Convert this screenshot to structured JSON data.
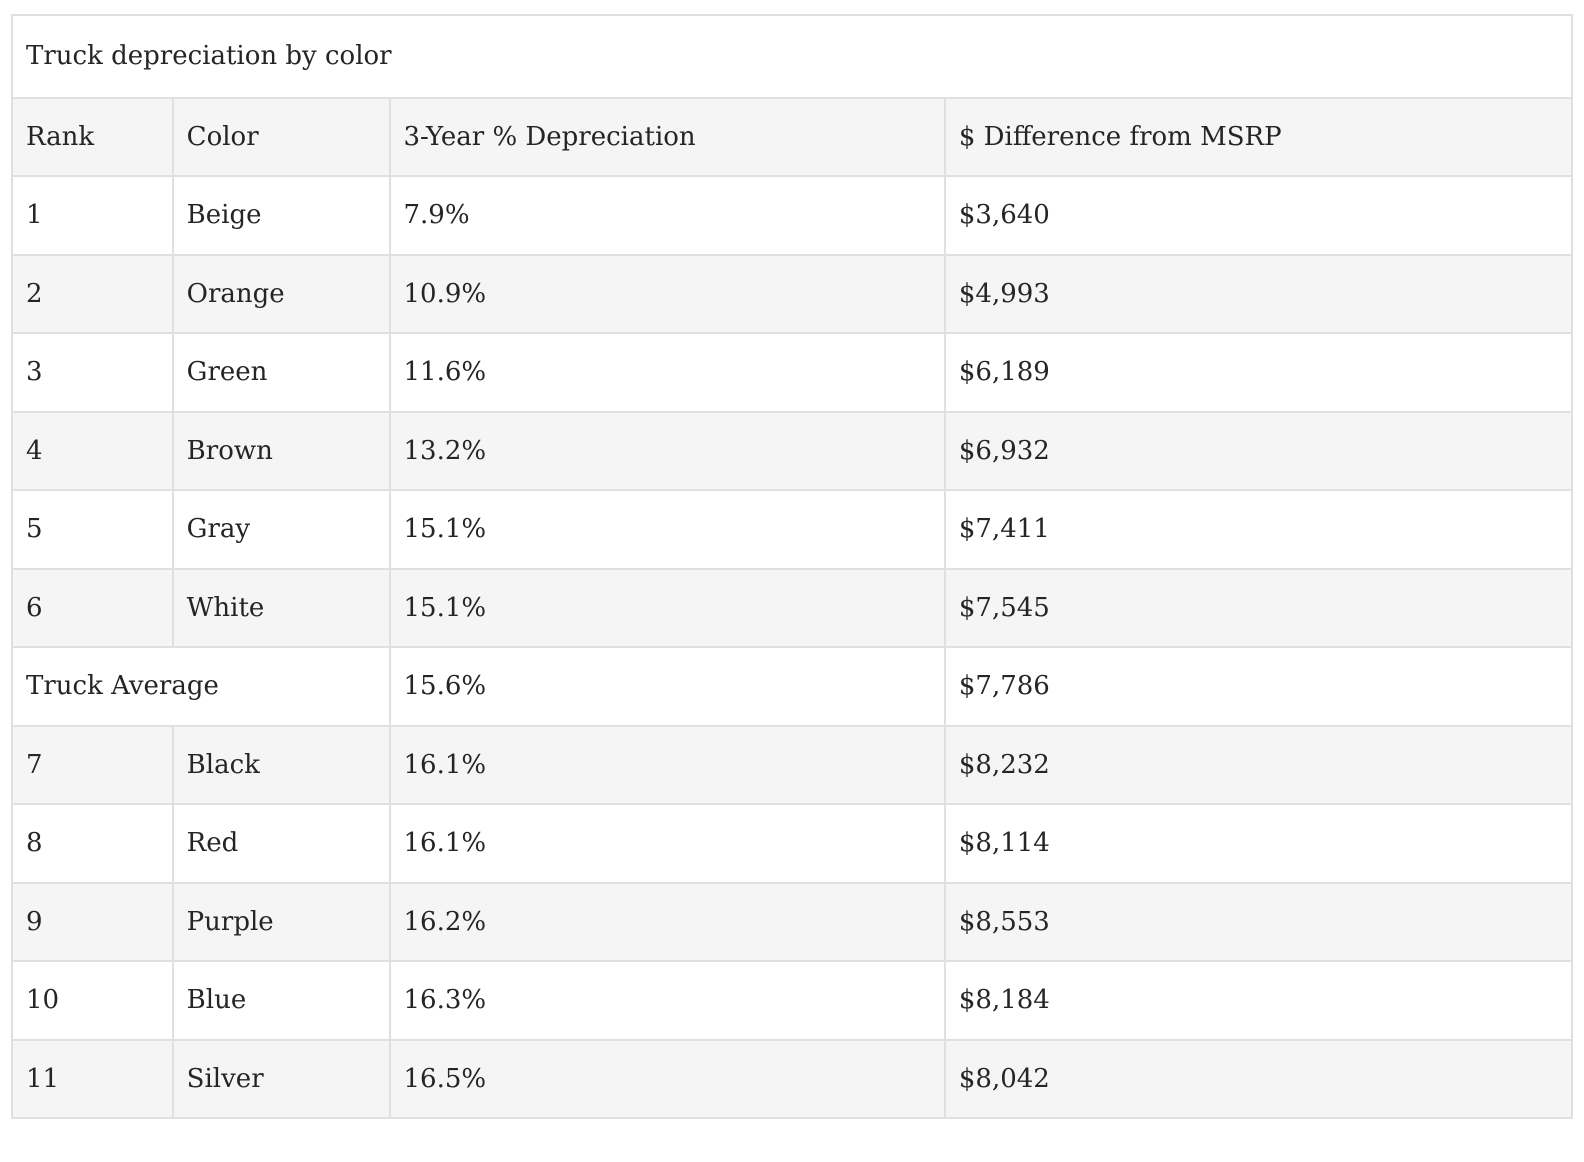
{
  "table": {
    "title": "Truck depreciation by color",
    "columns": [
      "Rank",
      "Color",
      "3-Year % Depreciation",
      "$ Difference from MSRP"
    ],
    "rows": [
      {
        "rank": "1",
        "color": "Beige",
        "depreciation": "7.9%",
        "difference": "$3,640"
      },
      {
        "rank": "2",
        "color": "Orange",
        "depreciation": "10.9%",
        "difference": "$4,993"
      },
      {
        "rank": "3",
        "color": "Green",
        "depreciation": "11.6%",
        "difference": "$6,189"
      },
      {
        "rank": "4",
        "color": "Brown",
        "depreciation": "13.2%",
        "difference": "$6,932"
      },
      {
        "rank": "5",
        "color": "Gray",
        "depreciation": "15.1%",
        "difference": "$7,411"
      },
      {
        "rank": "6",
        "color": "White",
        "depreciation": "15.1%",
        "difference": "$7,545"
      },
      {
        "average_label": "Truck Average",
        "depreciation": "15.6%",
        "difference": "$7,786",
        "average": true
      },
      {
        "rank": "7",
        "color": "Black",
        "depreciation": "16.1%",
        "difference": "$8,232"
      },
      {
        "rank": "8",
        "color": "Red",
        "depreciation": "16.1%",
        "difference": "$8,114"
      },
      {
        "rank": "9",
        "color": "Purple",
        "depreciation": "16.2%",
        "difference": "$8,553"
      },
      {
        "rank": "10",
        "color": "Blue",
        "depreciation": "16.3%",
        "difference": "$8,184"
      },
      {
        "rank": "11",
        "color": "Silver",
        "depreciation": "16.5%",
        "difference": "$8,042"
      }
    ]
  },
  "chart_data": {
    "type": "table",
    "title": "Truck depreciation by color",
    "columns": [
      "Rank",
      "Color",
      "3-Year % Depreciation",
      "$ Difference from MSRP"
    ],
    "rows": [
      [
        "1",
        "Beige",
        "7.9%",
        "$3,640"
      ],
      [
        "2",
        "Orange",
        "10.9%",
        "$4,993"
      ],
      [
        "3",
        "Green",
        "11.6%",
        "$6,189"
      ],
      [
        "4",
        "Brown",
        "13.2%",
        "$6,932"
      ],
      [
        "5",
        "Gray",
        "15.1%",
        "$7,411"
      ],
      [
        "6",
        "White",
        "15.1%",
        "$7,545"
      ],
      [
        "Truck Average",
        "15.6%",
        "$7,786"
      ],
      [
        "7",
        "Black",
        "16.1%",
        "$8,232"
      ],
      [
        "8",
        "Red",
        "16.1%",
        "$8,114"
      ],
      [
        "9",
        "Purple",
        "16.2%",
        "$8,553"
      ],
      [
        "10",
        "Blue",
        "16.3%",
        "$8,184"
      ],
      [
        "11",
        "Silver",
        "16.5%",
        "$8,042"
      ]
    ],
    "series": [
      {
        "name": "3-Year % Depreciation",
        "categories": [
          "Beige",
          "Orange",
          "Green",
          "Brown",
          "Gray",
          "White",
          "Truck Average",
          "Black",
          "Red",
          "Purple",
          "Blue",
          "Silver"
        ],
        "values": [
          7.9,
          10.9,
          11.6,
          13.2,
          15.1,
          15.1,
          15.6,
          16.1,
          16.1,
          16.2,
          16.3,
          16.5
        ]
      },
      {
        "name": "$ Difference from MSRP",
        "categories": [
          "Beige",
          "Orange",
          "Green",
          "Brown",
          "Gray",
          "White",
          "Truck Average",
          "Black",
          "Red",
          "Purple",
          "Blue",
          "Silver"
        ],
        "values": [
          3640,
          4993,
          6189,
          6932,
          7411,
          7545,
          7786,
          8232,
          8114,
          8553,
          8184,
          8042
        ]
      }
    ],
    "layout_hints": {
      "average_row_spans_rank_and_color_columns": true,
      "alternating_row_shading": true
    }
  },
  "style": {
    "shaded_row_bg": "#f5f5f5",
    "border_color": "#e0e0e0",
    "text_color": "#242528",
    "page_bg": "#ffffff"
  }
}
